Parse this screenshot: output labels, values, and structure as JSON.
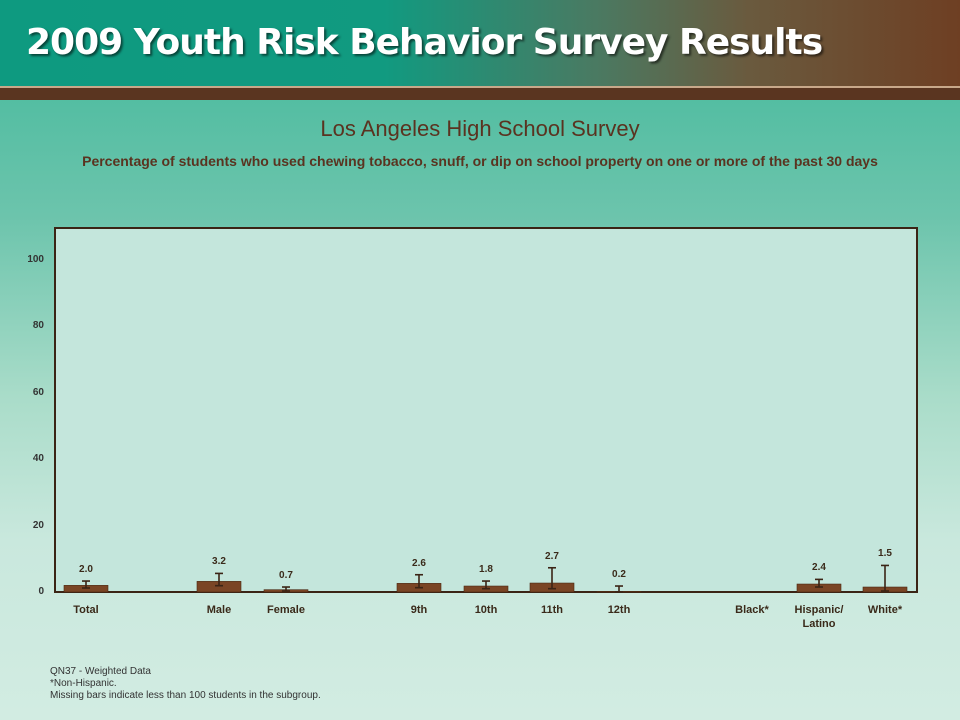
{
  "header": {
    "banner_title": "2009 Youth Risk Behavior Survey Results"
  },
  "colors": {
    "bar": "#7a4525",
    "bar_edge": "#4a2812",
    "error_bar": "#3b2415",
    "frame": "#3b2415",
    "title": "#5a3320"
  },
  "chart_data": {
    "type": "bar",
    "title": "Los Angeles High School Survey",
    "subtitle": "Percentage of students who used chewing tobacco, snuff, or dip on school property on one or more of the past 30 days",
    "ylim": [
      0,
      110
    ],
    "yticks": [
      "0",
      "20",
      "40",
      "60",
      "80",
      "100"
    ],
    "grid": false,
    "categories": [
      "Total",
      "Male",
      "Female",
      "9th",
      "10th",
      "11th",
      "12th",
      "Black*",
      "Hispanic/ Latino",
      "White*"
    ],
    "values": [
      2.0,
      3.2,
      0.7,
      2.6,
      1.8,
      2.7,
      0.2,
      null,
      2.4,
      1.5
    ],
    "value_labels": [
      "2.0",
      "3.2",
      "0.7",
      "2.6",
      "1.8",
      "2.7",
      "0.2",
      "",
      "2.4",
      "1.5"
    ],
    "error_low": [
      1.2,
      1.9,
      0.3,
      1.3,
      1.0,
      1.0,
      0.0,
      null,
      1.5,
      0.3
    ],
    "error_high": [
      3.3,
      5.6,
      1.5,
      5.2,
      3.3,
      7.3,
      1.8,
      null,
      3.8,
      8.0
    ]
  },
  "footnotes": {
    "line1": "QN37 - Weighted Data",
    "line2": "*Non-Hispanic.",
    "line3": "Missing bars indicate less than 100 students in the subgroup."
  }
}
